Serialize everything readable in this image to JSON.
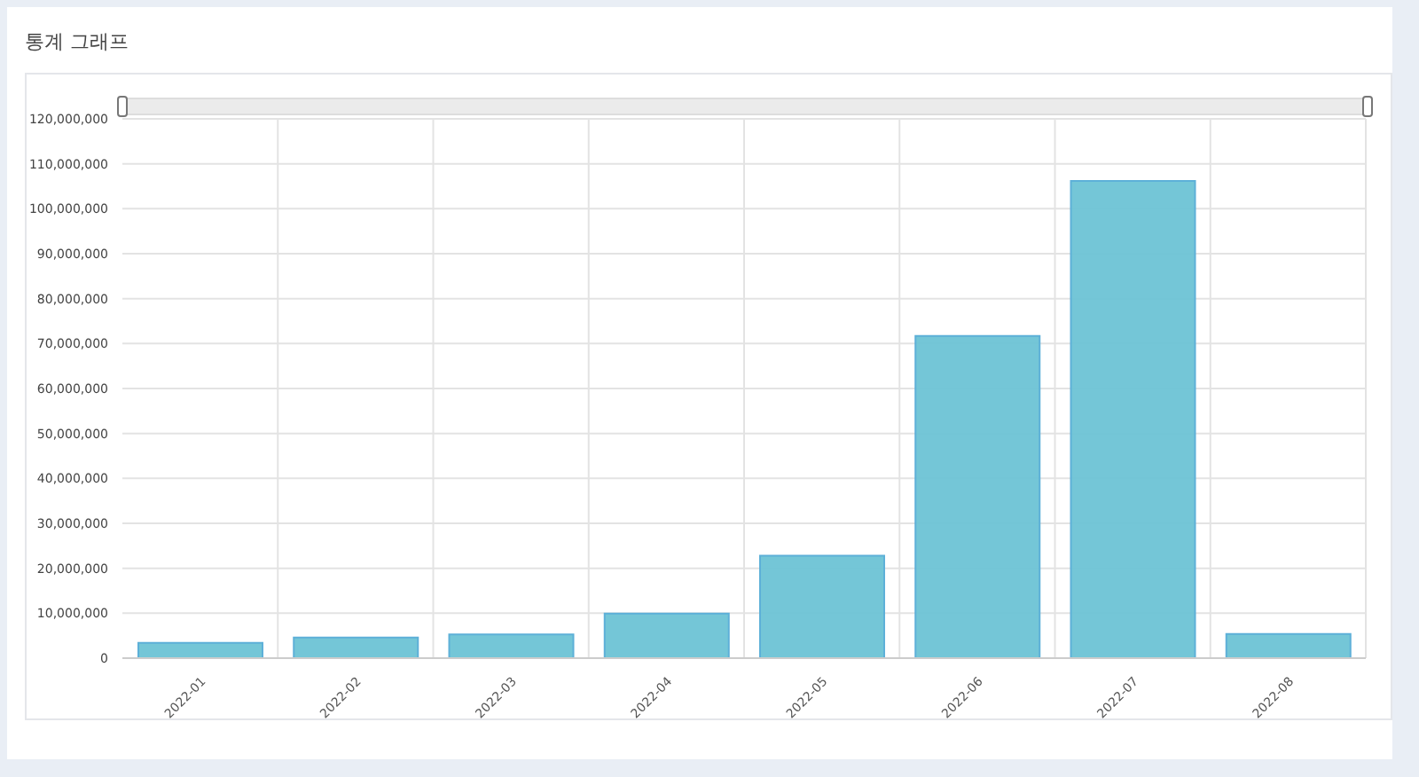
{
  "chart_data": {
    "type": "bar",
    "title": "통계 그래프",
    "categories": [
      "2022-01",
      "2022-02",
      "2022-03",
      "2022-04",
      "2022-05",
      "2022-06",
      "2022-07",
      "2022-08"
    ],
    "values": [
      3400000,
      4600000,
      5300000,
      9900000,
      22800000,
      71700000,
      106200000,
      5400000
    ],
    "color": "#6dc3d5",
    "ylim": [
      0,
      120000000
    ],
    "yticks": [
      {
        "value": 0,
        "label": "0"
      },
      {
        "value": 10000000,
        "label": "10,000,000"
      },
      {
        "value": 20000000,
        "label": "20,000,000"
      },
      {
        "value": 30000000,
        "label": "30,000,000"
      },
      {
        "value": 40000000,
        "label": "40,000,000"
      },
      {
        "value": 50000000,
        "label": "50,000,000"
      },
      {
        "value": 60000000,
        "label": "60,000,000"
      },
      {
        "value": 70000000,
        "label": "70,000,000"
      },
      {
        "value": 80000000,
        "label": "80,000,000"
      },
      {
        "value": 90000000,
        "label": "90,000,000"
      },
      {
        "value": 100000000,
        "label": "100,000,000"
      },
      {
        "value": 110000000,
        "label": "110,000,000"
      },
      {
        "value": 120000000,
        "label": "120,000,000"
      }
    ],
    "grid": true,
    "legend": false
  }
}
